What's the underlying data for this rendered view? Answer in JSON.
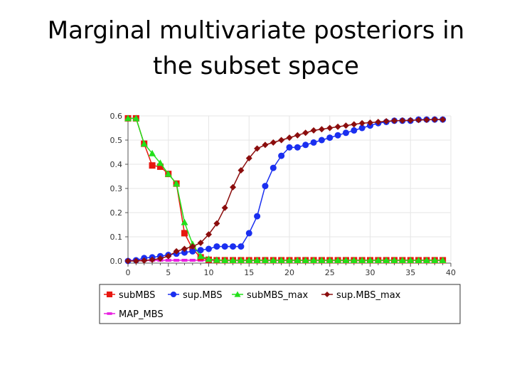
{
  "title": {
    "line1": "Marginal multivariate posteriors in",
    "line2": "the subset space"
  },
  "chart_data": {
    "type": "line",
    "title": "",
    "xlabel": "",
    "ylabel": "",
    "xlim": [
      0,
      40
    ],
    "ylim": [
      0,
      0.6
    ],
    "x_ticks": [
      0,
      5,
      10,
      15,
      20,
      25,
      30,
      35,
      40
    ],
    "y_ticks": [
      0.0,
      0.1,
      0.2,
      0.3,
      0.4,
      0.5,
      0.6
    ],
    "x_tick_labels": [
      "0",
      "5",
      "10",
      "15",
      "20",
      "25",
      "30",
      "35",
      "40"
    ],
    "y_tick_labels": [
      "0.0",
      "0.1",
      "0.2",
      "0.3",
      "0.4",
      "0.5",
      "0.6"
    ],
    "grid": true,
    "legend_position": "bottom",
    "x": [
      0,
      1,
      2,
      3,
      4,
      5,
      6,
      7,
      8,
      9,
      10,
      11,
      12,
      13,
      14,
      15,
      16,
      17,
      18,
      19,
      20,
      21,
      22,
      23,
      24,
      25,
      26,
      27,
      28,
      29,
      30,
      31,
      32,
      33,
      34,
      35,
      36,
      37,
      38,
      39
    ],
    "series": [
      {
        "name": "subMBS",
        "color": "#e8170f",
        "marker": "square",
        "values": [
          0.59,
          0.59,
          0.485,
          0.395,
          0.39,
          0.36,
          0.32,
          0.115,
          0.05,
          0.015,
          0.005,
          0.003,
          0.003,
          0.003,
          0.003,
          0.003,
          0.003,
          0.003,
          0.003,
          0.003,
          0.003,
          0.003,
          0.003,
          0.003,
          0.003,
          0.003,
          0.003,
          0.003,
          0.003,
          0.003,
          0.003,
          0.003,
          0.003,
          0.003,
          0.003,
          0.003,
          0.003,
          0.003,
          0.003,
          0.003
        ]
      },
      {
        "name": "sup.MBS",
        "color": "#1a2ff0",
        "marker": "circle",
        "values": [
          0.0,
          0.003,
          0.012,
          0.015,
          0.02,
          0.025,
          0.03,
          0.035,
          0.04,
          0.045,
          0.05,
          0.06,
          0.06,
          0.06,
          0.06,
          0.115,
          0.185,
          0.31,
          0.385,
          0.435,
          0.47,
          0.47,
          0.48,
          0.49,
          0.5,
          0.51,
          0.52,
          0.53,
          0.54,
          0.55,
          0.56,
          0.57,
          0.575,
          0.58,
          0.58,
          0.58,
          0.585,
          0.585,
          0.585,
          0.585
        ]
      },
      {
        "name": "subMBS_max",
        "color": "#22e01a",
        "marker": "triangle",
        "values": [
          0.59,
          0.59,
          0.485,
          0.445,
          0.405,
          0.36,
          0.32,
          0.16,
          0.07,
          0.02,
          0.008,
          0.004,
          0.003,
          0.003,
          0.003,
          0.003,
          0.003,
          0.003,
          0.003,
          0.003,
          0.003,
          0.003,
          0.003,
          0.003,
          0.003,
          0.003,
          0.003,
          0.003,
          0.003,
          0.003,
          0.003,
          0.003,
          0.003,
          0.003,
          0.003,
          0.003,
          0.003,
          0.003,
          0.003,
          0.003
        ]
      },
      {
        "name": "sup.MBS_max",
        "color": "#8b0d0d",
        "marker": "diamond",
        "values": [
          0.0,
          0.0,
          0.002,
          0.005,
          0.01,
          0.02,
          0.04,
          0.05,
          0.06,
          0.075,
          0.11,
          0.155,
          0.22,
          0.305,
          0.375,
          0.425,
          0.465,
          0.48,
          0.49,
          0.5,
          0.51,
          0.52,
          0.53,
          0.54,
          0.545,
          0.55,
          0.555,
          0.56,
          0.565,
          0.57,
          0.572,
          0.575,
          0.578,
          0.58,
          0.581,
          0.582,
          0.583,
          0.584,
          0.585,
          0.585
        ]
      },
      {
        "name": "MAP_MBS",
        "color": "#e81ee0",
        "marker": "dash",
        "values": [
          0.003,
          0.003,
          0.003,
          0.003,
          0.003,
          0.003,
          0.003,
          0.003,
          0.003,
          0.003,
          0.003,
          0.003,
          0.003,
          0.003,
          0.003,
          0.003,
          0.003,
          0.003,
          0.003,
          0.003,
          0.003,
          0.003,
          0.003,
          0.003,
          0.003,
          0.003,
          0.003,
          0.003,
          0.003,
          0.003,
          0.003,
          0.003,
          0.003,
          0.003,
          0.003,
          0.003,
          0.003,
          0.003,
          0.003,
          0.003
        ]
      }
    ]
  }
}
